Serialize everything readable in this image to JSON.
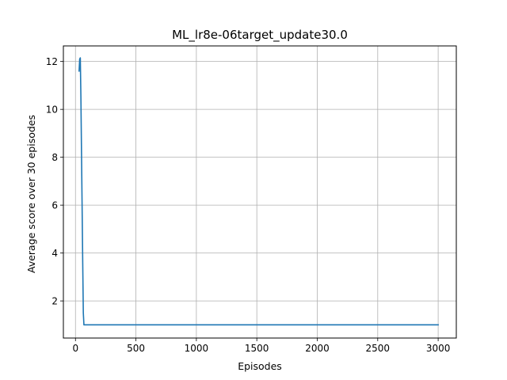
{
  "chart_data": {
    "type": "line",
    "title": "ML_lr8e-06target_update30.0",
    "xlabel": "Episodes",
    "ylabel": "Average score over 30 episodes",
    "xlim": [
      -100,
      3150
    ],
    "ylim": [
      0.45,
      12.65
    ],
    "xticks": [
      0,
      500,
      1000,
      1500,
      2000,
      2500,
      3000
    ],
    "yticks": [
      2,
      4,
      6,
      8,
      10,
      12
    ],
    "grid": true,
    "series": [
      {
        "color": "#1f77b4",
        "x": [
          30,
          35,
          40,
          45,
          50,
          55,
          60,
          65,
          70,
          100,
          500,
          1000,
          1500,
          2000,
          2500,
          3000
        ],
        "y": [
          11.6,
          12.1,
          12.15,
          10.5,
          8.2,
          5.9,
          3.6,
          1.5,
          1.0,
          1.0,
          1.0,
          1.0,
          1.0,
          1.0,
          1.0,
          1.0
        ]
      }
    ]
  }
}
